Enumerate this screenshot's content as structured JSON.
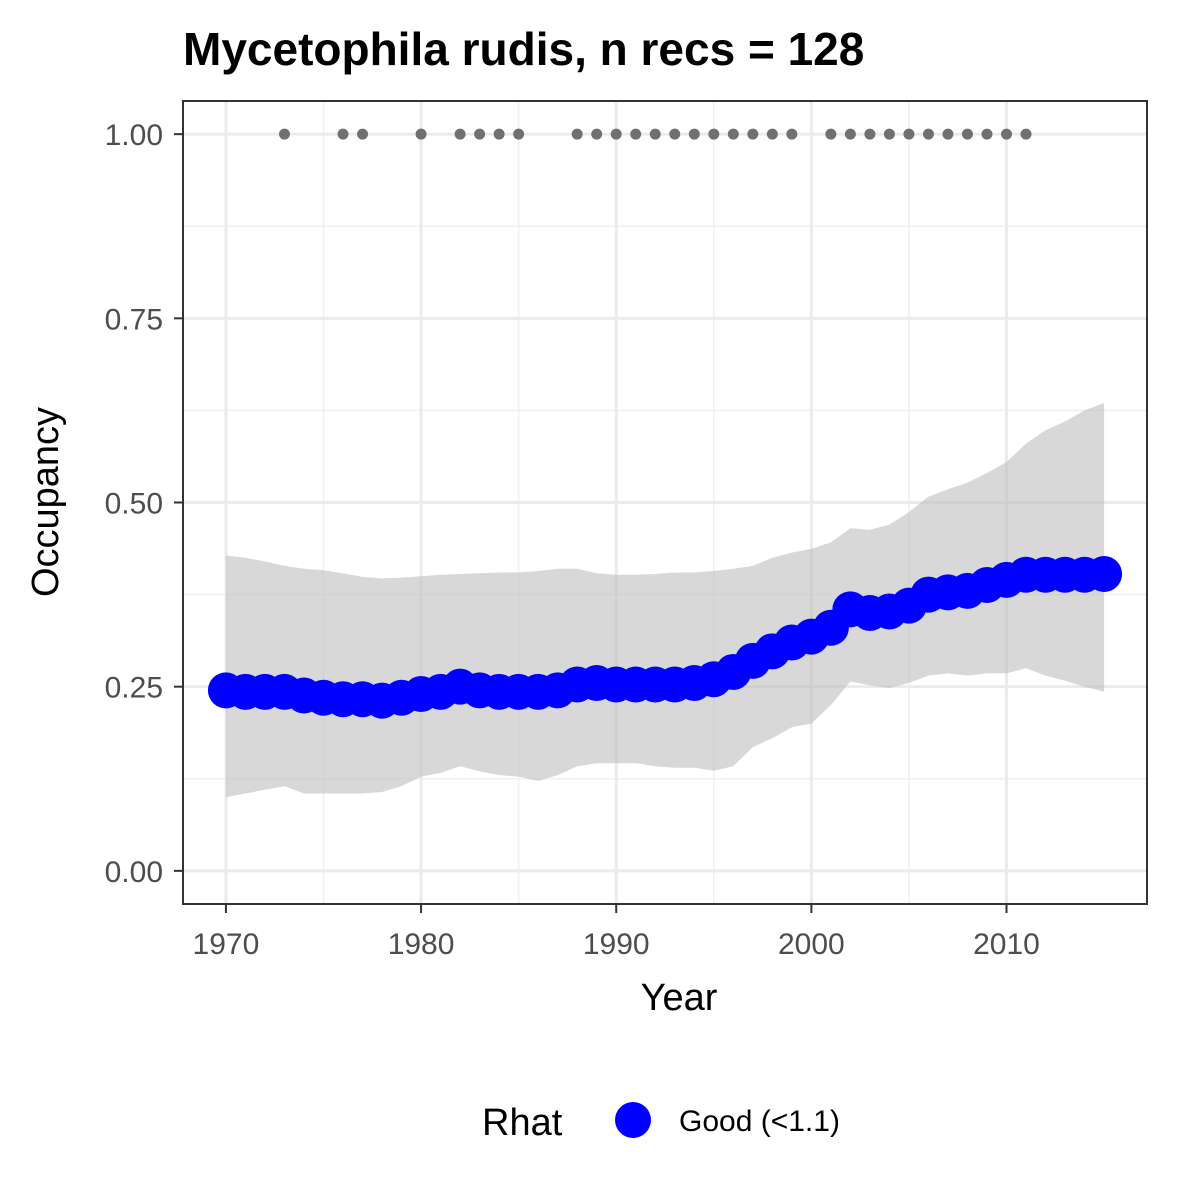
{
  "chart_data": {
    "type": "line",
    "title": "Mycetophila rudis, n recs = 128",
    "xlabel": "Year",
    "ylabel": "Occupancy",
    "xlim": [
      1967.8,
      2017.2
    ],
    "ylim": [
      -0.045,
      1.045
    ],
    "x_ticks": [
      1970,
      1980,
      1990,
      2000,
      2010
    ],
    "x_tick_labels": [
      "1970",
      "1980",
      "1990",
      "2000",
      "2010"
    ],
    "y_ticks": [
      0,
      0.25,
      0.5,
      0.75,
      1
    ],
    "y_tick_labels": [
      "0.00",
      "0.25",
      "0.50",
      "0.75",
      "1.00"
    ],
    "grid": true,
    "legend": {
      "title": "Rhat",
      "placement": "bottom",
      "entries": [
        {
          "label": "Good (<1.1)",
          "color": "#0000ff"
        }
      ]
    },
    "colors": {
      "estimate": "#0000ff",
      "ribbon": "#bebebe",
      "records": "#707070"
    },
    "x": [
      1970,
      1971,
      1972,
      1973,
      1974,
      1975,
      1976,
      1977,
      1978,
      1979,
      1980,
      1981,
      1982,
      1983,
      1984,
      1985,
      1986,
      1987,
      1988,
      1989,
      1990,
      1991,
      1992,
      1993,
      1994,
      1995,
      1996,
      1997,
      1998,
      1999,
      2000,
      2001,
      2002,
      2003,
      2004,
      2005,
      2006,
      2007,
      2008,
      2009,
      2010,
      2011,
      2012,
      2013,
      2014,
      2015
    ],
    "series": [
      {
        "name": "Good (<1.1)",
        "values": [
          0.245,
          0.243,
          0.243,
          0.243,
          0.238,
          0.235,
          0.233,
          0.233,
          0.231,
          0.235,
          0.24,
          0.243,
          0.25,
          0.245,
          0.243,
          0.243,
          0.243,
          0.245,
          0.253,
          0.255,
          0.253,
          0.253,
          0.253,
          0.253,
          0.255,
          0.26,
          0.27,
          0.285,
          0.298,
          0.31,
          0.318,
          0.33,
          0.355,
          0.35,
          0.352,
          0.36,
          0.375,
          0.378,
          0.38,
          0.388,
          0.395,
          0.402,
          0.402,
          0.402,
          0.402,
          0.403
        ],
        "lower": [
          0.1,
          0.105,
          0.11,
          0.115,
          0.105,
          0.105,
          0.105,
          0.105,
          0.107,
          0.115,
          0.128,
          0.133,
          0.142,
          0.135,
          0.13,
          0.128,
          0.122,
          0.13,
          0.142,
          0.146,
          0.146,
          0.146,
          0.142,
          0.14,
          0.14,
          0.136,
          0.142,
          0.168,
          0.18,
          0.195,
          0.2,
          0.225,
          0.257,
          0.252,
          0.248,
          0.255,
          0.265,
          0.268,
          0.265,
          0.268,
          0.268,
          0.275,
          0.265,
          0.258,
          0.25,
          0.243
        ],
        "upper": [
          0.428,
          0.425,
          0.42,
          0.414,
          0.41,
          0.408,
          0.404,
          0.399,
          0.397,
          0.398,
          0.4,
          0.402,
          0.403,
          0.404,
          0.405,
          0.405,
          0.407,
          0.41,
          0.41,
          0.404,
          0.402,
          0.402,
          0.403,
          0.405,
          0.405,
          0.407,
          0.41,
          0.414,
          0.425,
          0.432,
          0.437,
          0.446,
          0.465,
          0.463,
          0.47,
          0.487,
          0.508,
          0.518,
          0.527,
          0.54,
          0.555,
          0.58,
          0.598,
          0.61,
          0.625,
          0.635
        ]
      }
    ],
    "records": {
      "y": 1.0,
      "years": [
        1973,
        1976,
        1977,
        1980,
        1982,
        1983,
        1984,
        1985,
        1988,
        1989,
        1990,
        1991,
        1992,
        1993,
        1994,
        1995,
        1996,
        1997,
        1998,
        1999,
        2001,
        2002,
        2003,
        2004,
        2005,
        2006,
        2007,
        2008,
        2009,
        2010,
        2011
      ]
    }
  }
}
